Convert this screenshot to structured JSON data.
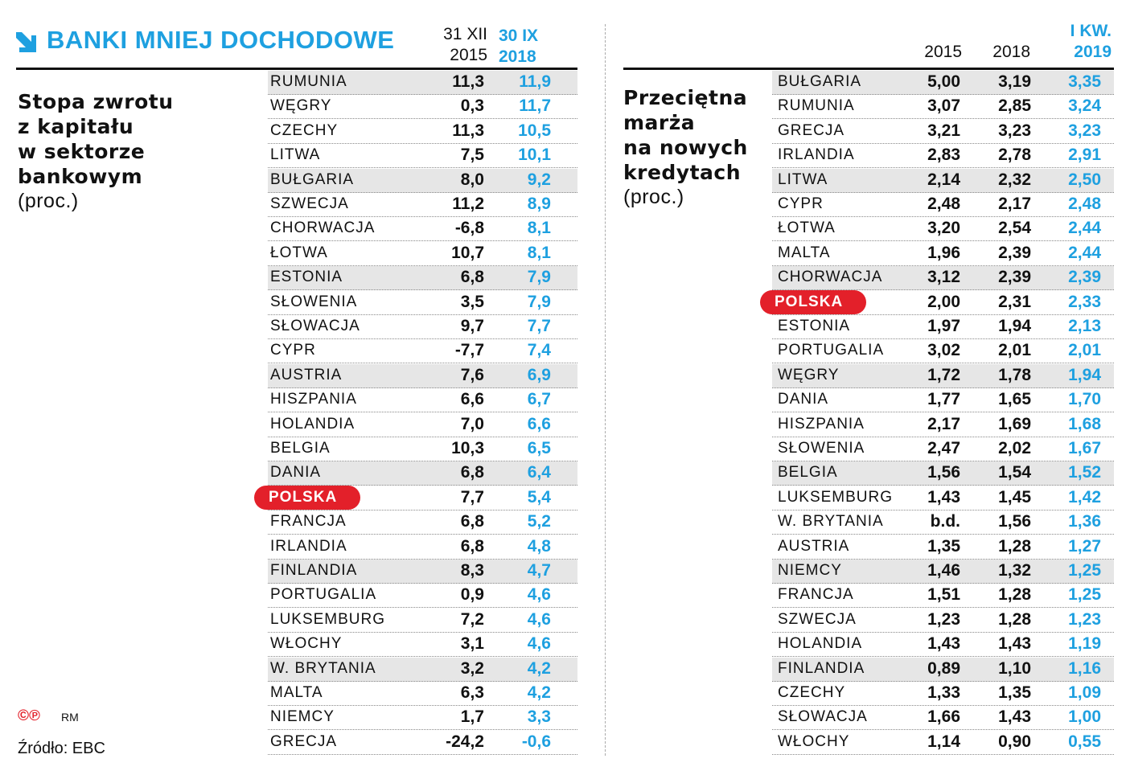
{
  "title": "BANKI MNIEJ DOCHODOWE",
  "colors": {
    "accent": "#1ea0e0",
    "highlight": "#e3202a"
  },
  "left": {
    "subtitle": [
      "Stopa zwrotu",
      "z kapitału",
      "w sektorze",
      "bankowym"
    ],
    "unit": "(proc.)",
    "col1": [
      "31 XII",
      "2015"
    ],
    "col2": [
      "30 IX",
      "2018"
    ],
    "highlight": "POLSKA",
    "rows": [
      [
        "RUMUNIA",
        "11,3",
        "11,9"
      ],
      [
        "WĘGRY",
        "0,3",
        "11,7"
      ],
      [
        "CZECHY",
        "11,3",
        "10,5"
      ],
      [
        "LITWA",
        "7,5",
        "10,1"
      ],
      [
        "BUŁGARIA",
        "8,0",
        "9,2"
      ],
      [
        "SZWECJA",
        "11,2",
        "8,9"
      ],
      [
        "CHORWACJA",
        "-6,8",
        "8,1"
      ],
      [
        "ŁOTWA",
        "10,7",
        "8,1"
      ],
      [
        "ESTONIA",
        "6,8",
        "7,9"
      ],
      [
        "SŁOWENIA",
        "3,5",
        "7,9"
      ],
      [
        "SŁOWACJA",
        "9,7",
        "7,7"
      ],
      [
        "CYPR",
        "-7,7",
        "7,4"
      ],
      [
        "AUSTRIA",
        "7,6",
        "6,9"
      ],
      [
        "HISZPANIA",
        "6,6",
        "6,7"
      ],
      [
        "HOLANDIA",
        "7,0",
        "6,6"
      ],
      [
        "BELGIA",
        "10,3",
        "6,5"
      ],
      [
        "DANIA",
        "6,8",
        "6,4"
      ],
      [
        "POLSKA",
        "7,7",
        "5,4"
      ],
      [
        "FRANCJA",
        "6,8",
        "5,2"
      ],
      [
        "IRLANDIA",
        "6,8",
        "4,8"
      ],
      [
        "FINLANDIA",
        "8,3",
        "4,7"
      ],
      [
        "PORTUGALIA",
        "0,9",
        "4,6"
      ],
      [
        "LUKSEMBURG",
        "7,2",
        "4,6"
      ],
      [
        "WŁOCHY",
        "3,1",
        "4,6"
      ],
      [
        "W. BRYTANIA",
        "3,2",
        "4,2"
      ],
      [
        "MALTA",
        "6,3",
        "4,2"
      ],
      [
        "NIEMCY",
        "1,7",
        "3,3"
      ],
      [
        "GRECJA",
        "-24,2",
        "-0,6"
      ]
    ]
  },
  "right": {
    "subtitle": [
      "Przeciętna",
      "marża",
      "na nowych",
      "kredytach"
    ],
    "unit": "(proc.)",
    "col1": "2015",
    "col2": "2018",
    "col3": [
      "I KW.",
      "2019"
    ],
    "highlight": "POLSKA",
    "rows": [
      [
        "BUŁGARIA",
        "5,00",
        "3,19",
        "3,35"
      ],
      [
        "RUMUNIA",
        "3,07",
        "2,85",
        "3,24"
      ],
      [
        "GRECJA",
        "3,21",
        "3,23",
        "3,23"
      ],
      [
        "IRLANDIA",
        "2,83",
        "2,78",
        "2,91"
      ],
      [
        "LITWA",
        "2,14",
        "2,32",
        "2,50"
      ],
      [
        "CYPR",
        "2,48",
        "2,17",
        "2,48"
      ],
      [
        "ŁOTWA",
        "3,20",
        "2,54",
        "2,44"
      ],
      [
        "MALTA",
        "1,96",
        "2,39",
        "2,44"
      ],
      [
        "CHORWACJA",
        "3,12",
        "2,39",
        "2,39"
      ],
      [
        "POLSKA",
        "2,00",
        "2,31",
        "2,33"
      ],
      [
        "ESTONIA",
        "1,97",
        "1,94",
        "2,13"
      ],
      [
        "PORTUGALIA",
        "3,02",
        "2,01",
        "2,01"
      ],
      [
        "WĘGRY",
        "1,72",
        "1,78",
        "1,94"
      ],
      [
        "DANIA",
        "1,77",
        "1,65",
        "1,70"
      ],
      [
        "HISZPANIA",
        "2,17",
        "1,69",
        "1,68"
      ],
      [
        "SŁOWENIA",
        "2,47",
        "2,02",
        "1,67"
      ],
      [
        "BELGIA",
        "1,56",
        "1,54",
        "1,52"
      ],
      [
        "LUKSEMBURG",
        "1,43",
        "1,45",
        "1,42"
      ],
      [
        "W. BRYTANIA",
        "b.d.",
        "1,56",
        "1,36"
      ],
      [
        "AUSTRIA",
        "1,35",
        "1,28",
        "1,27"
      ],
      [
        "NIEMCY",
        "1,46",
        "1,32",
        "1,25"
      ],
      [
        "FRANCJA",
        "1,51",
        "1,28",
        "1,25"
      ],
      [
        "SZWECJA",
        "1,23",
        "1,28",
        "1,23"
      ],
      [
        "HOLANDIA",
        "1,43",
        "1,43",
        "1,19"
      ],
      [
        "FINLANDIA",
        "0,89",
        "1,10",
        "1,16"
      ],
      [
        "CZECHY",
        "1,33",
        "1,35",
        "1,09"
      ],
      [
        "SŁOWACJA",
        "1,66",
        "1,43",
        "1,00"
      ],
      [
        "WŁOCHY",
        "1,14",
        "0,90",
        "0,55"
      ]
    ]
  },
  "footer": {
    "copyright": "©℗",
    "author": "RM",
    "source": "Źródło: EBC"
  }
}
